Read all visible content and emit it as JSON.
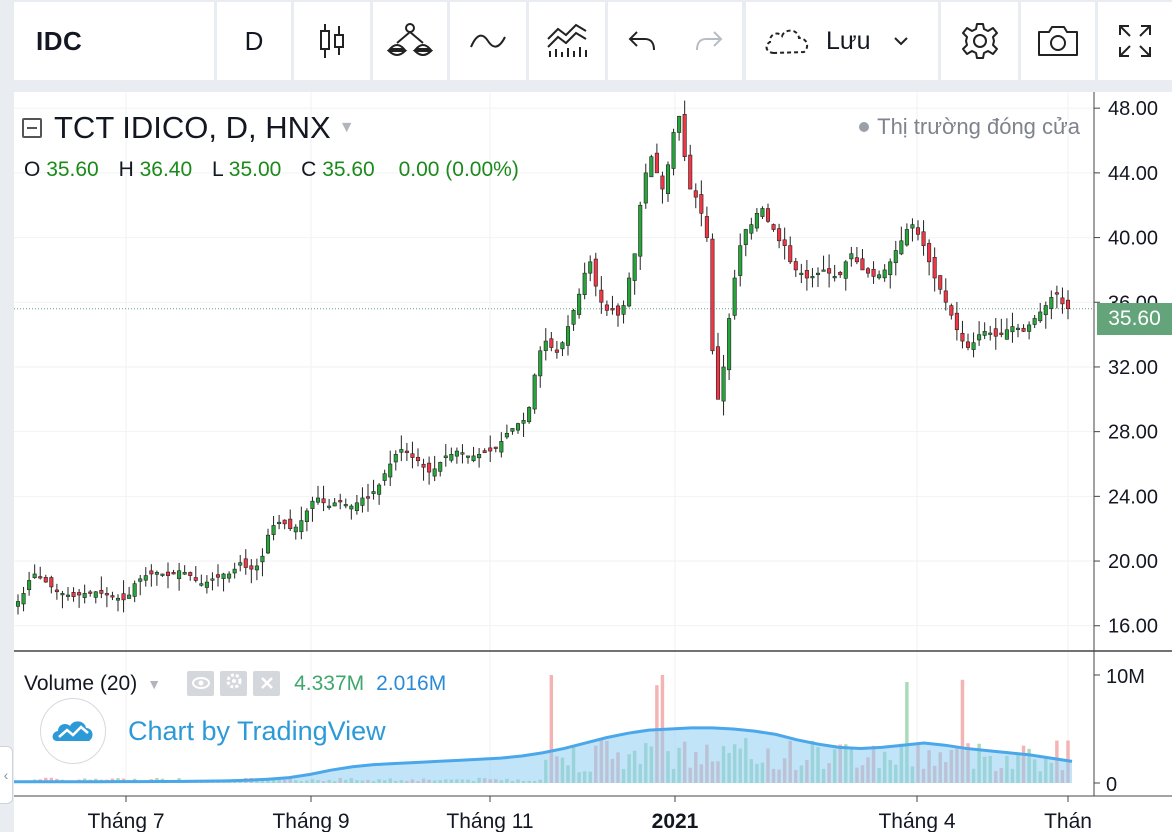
{
  "toolbar": {
    "symbol": "IDC",
    "interval": "D",
    "save_label": "Lưu",
    "icons": [
      "candles-icon",
      "indicators-icon",
      "compare-icon",
      "templates-icon",
      "undo-icon",
      "redo-icon",
      "cloud-icon",
      "gear-icon",
      "camera-icon",
      "fullscreen-icon"
    ]
  },
  "legend": {
    "title": "TCT IDICO, D, HNX",
    "o_label": "O",
    "o_value": "35.60",
    "h_label": "H",
    "h_value": "36.40",
    "l_label": "L",
    "l_value": "35.00",
    "c_label": "C",
    "c_value": "35.60",
    "change": "0.00 (0.00%)",
    "market_status": "Thị trường đóng cửa"
  },
  "volume": {
    "label": "Volume (20)",
    "value": "4.337M",
    "ma_value": "2.016M"
  },
  "watermark": "Chart by TradingView",
  "colors": {
    "up": "#26a63a",
    "down": "#f23645",
    "vol_up": "#a8dcb8",
    "vol_down": "#f4b4b4",
    "ma_line": "#4aa8ea",
    "ma_fill": "#8ecdf2",
    "price_tag": "#64a47b"
  },
  "chart_data": {
    "type": "candlestick",
    "price_axis": {
      "min": 14.5,
      "max": 49,
      "ticks": [
        "48.00",
        "44.00",
        "40.00",
        "36.00",
        "32.00",
        "28.00",
        "24.00",
        "20.00",
        "16.00"
      ]
    },
    "last_price": "35.60",
    "volume_axis": {
      "max": 10,
      "unit": "M",
      "ticks": [
        "10M",
        "0"
      ]
    },
    "time_labels": [
      "Tháng 7",
      "Tháng 9",
      "Tháng 11",
      "2021",
      "Tháng 4",
      "Thán"
    ],
    "close_series": [
      17.5,
      18.0,
      18.8,
      19.2,
      19.0,
      18.7,
      18.4,
      18.1,
      18.0,
      17.9,
      17.8,
      17.9,
      18.0,
      18.0,
      18.1,
      18.0,
      17.9,
      17.8,
      17.7,
      17.6,
      17.9,
      18.6,
      18.9,
      19.1,
      19.2,
      19.3,
      19.2,
      19.1,
      19.2,
      19.4,
      19.3,
      19.1,
      18.8,
      18.6,
      18.7,
      18.9,
      19.0,
      19.2,
      19.2,
      19.5,
      19.9,
      19.6,
      19.5,
      19.7,
      20.3,
      21.6,
      22.2,
      22.4,
      22.3,
      22.0,
      22.1,
      22.5,
      23.1,
      23.7,
      23.9,
      23.6,
      23.4,
      23.6,
      23.7,
      23.5,
      23.4,
      23.6,
      23.9,
      23.9,
      24.3,
      24.7,
      25.4,
      26.0,
      26.6,
      26.9,
      26.7,
      26.4,
      26.2,
      25.8,
      25.5,
      25.7,
      26.1,
      26.5,
      26.6,
      26.8,
      26.7,
      26.5,
      26.5,
      26.6,
      26.7,
      26.8,
      27.0,
      27.4,
      27.9,
      28.2,
      28.5,
      28.7,
      29.5,
      31.5,
      33.0,
      33.6,
      33.2,
      32.9,
      33.5,
      34.5,
      35.5,
      36.5,
      37.8,
      38.5,
      37.0,
      36.0,
      35.5,
      35.6,
      35.2,
      35.8,
      37.5,
      39.0,
      42.0,
      44.0,
      45.0,
      44.0,
      43.0,
      44.5,
      46.5,
      47.5,
      45.0,
      43.0,
      42.5,
      41.5,
      40.0,
      33.0,
      30.0,
      32.0,
      35.0,
      37.5,
      39.5,
      40.5,
      40.8,
      41.5,
      41.8,
      41.0,
      40.5,
      39.8,
      39.5,
      38.5,
      38.0,
      37.8,
      37.5,
      37.6,
      37.8,
      38.0,
      37.8,
      37.6,
      37.7,
      38.5,
      39.0,
      38.5,
      38.0,
      37.8,
      37.6,
      37.7,
      38.0,
      38.5,
      39.2,
      39.8,
      40.5,
      40.8,
      40.2,
      39.5,
      38.5,
      37.5,
      36.8,
      36.0,
      35.2,
      34.3,
      33.6,
      33.2,
      33.5,
      34.0,
      34.2,
      34.1,
      33.9,
      34.0,
      34.3,
      34.5,
      34.4,
      34.2,
      34.6,
      35.0,
      35.4,
      35.8,
      36.3,
      36.5,
      35.9,
      35.6
    ],
    "volume_ma": [
      0.12,
      0.12,
      0.12,
      0.12,
      0.12,
      0.13,
      0.13,
      0.14,
      0.15,
      0.17,
      0.2,
      0.25,
      0.35,
      0.5,
      0.8,
      1.2,
      1.5,
      1.7,
      1.8,
      1.9,
      2.0,
      2.1,
      2.2,
      2.3,
      2.5,
      2.8,
      3.2,
      3.7,
      4.2,
      4.6,
      4.9,
      5.0,
      5.1,
      5.1,
      5.0,
      4.8,
      4.5,
      4.0,
      3.6,
      3.3,
      3.2,
      3.3,
      3.5,
      3.7,
      3.5,
      3.2,
      3.0,
      2.8,
      2.6,
      2.3,
      2.0
    ]
  }
}
